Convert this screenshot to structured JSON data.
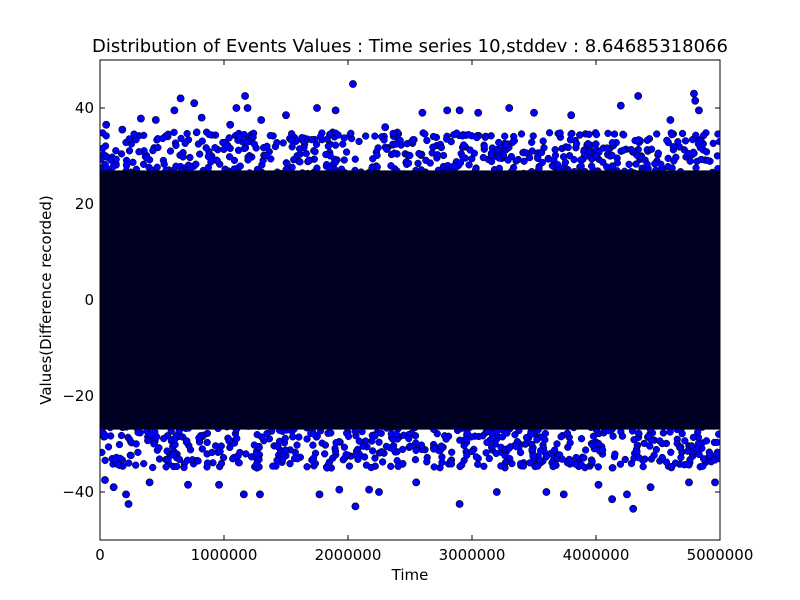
{
  "chart_data": {
    "type": "scatter",
    "title": "Distribution of Events Values : Time series 10,stddev : 8.64685318066",
    "xlabel": "Time",
    "ylabel": "Values(Difference recorded)",
    "xlim": [
      0,
      5000000
    ],
    "ylim": [
      -50,
      50
    ],
    "x_ticks": [
      0,
      1000000,
      2000000,
      3000000,
      4000000,
      5000000
    ],
    "x_tick_labels": [
      "0",
      "1000000",
      "2000000",
      "3000000",
      "4000000",
      "5000000"
    ],
    "y_ticks": [
      -40,
      -20,
      0,
      20,
      40
    ],
    "y_tick_labels": [
      "−40",
      "−20",
      "0",
      "20",
      "40"
    ],
    "grid": false,
    "legend": "none",
    "marker_color": "#0000ff",
    "marker_edge_color": "#000000",
    "dense_band_color": "#000022",
    "series": [
      {
        "dense_core_range": [
          -27,
          27
        ],
        "upper_outliers": [
          {
            "x": 50000,
            "y": 36.5
          },
          {
            "x": 180000,
            "y": 35.5
          },
          {
            "x": 330000,
            "y": 37.8
          },
          {
            "x": 450000,
            "y": 37.5
          },
          {
            "x": 600000,
            "y": 39.5
          },
          {
            "x": 650000,
            "y": 42.0
          },
          {
            "x": 760000,
            "y": 41.0
          },
          {
            "x": 820000,
            "y": 38.0
          },
          {
            "x": 1050000,
            "y": 36.5
          },
          {
            "x": 1100000,
            "y": 40.0
          },
          {
            "x": 1170000,
            "y": 42.5
          },
          {
            "x": 1190000,
            "y": 40.0
          },
          {
            "x": 1300000,
            "y": 37.5
          },
          {
            "x": 1500000,
            "y": 38.5
          },
          {
            "x": 1750000,
            "y": 40.0
          },
          {
            "x": 1900000,
            "y": 39.5
          },
          {
            "x": 2040000,
            "y": 45.0
          },
          {
            "x": 2300000,
            "y": 36.0
          },
          {
            "x": 2600000,
            "y": 39.0
          },
          {
            "x": 2800000,
            "y": 39.5
          },
          {
            "x": 2900000,
            "y": 39.5
          },
          {
            "x": 3050000,
            "y": 39.0
          },
          {
            "x": 3300000,
            "y": 40.0
          },
          {
            "x": 3500000,
            "y": 39.0
          },
          {
            "x": 3800000,
            "y": 38.5
          },
          {
            "x": 4200000,
            "y": 40.5
          },
          {
            "x": 4340000,
            "y": 42.5
          },
          {
            "x": 4600000,
            "y": 37.5
          },
          {
            "x": 4790000,
            "y": 43.0
          },
          {
            "x": 4800000,
            "y": 41.5
          },
          {
            "x": 4830000,
            "y": 39.5
          }
        ],
        "lower_outliers": [
          {
            "x": 40000,
            "y": -37.5
          },
          {
            "x": 110000,
            "y": -39.0
          },
          {
            "x": 210000,
            "y": -40.5
          },
          {
            "x": 230000,
            "y": -42.5
          },
          {
            "x": 400000,
            "y": -38.0
          },
          {
            "x": 710000,
            "y": -38.5
          },
          {
            "x": 960000,
            "y": -38.5
          },
          {
            "x": 1160000,
            "y": -40.5
          },
          {
            "x": 1290000,
            "y": -40.5
          },
          {
            "x": 1770000,
            "y": -40.5
          },
          {
            "x": 1930000,
            "y": -39.5
          },
          {
            "x": 2060000,
            "y": -43.0
          },
          {
            "x": 2170000,
            "y": -39.5
          },
          {
            "x": 2250000,
            "y": -40.0
          },
          {
            "x": 2550000,
            "y": -38.0
          },
          {
            "x": 2900000,
            "y": -42.5
          },
          {
            "x": 3200000,
            "y": -40.0
          },
          {
            "x": 3600000,
            "y": -40.0
          },
          {
            "x": 3740000,
            "y": -40.5
          },
          {
            "x": 4020000,
            "y": -38.5
          },
          {
            "x": 4130000,
            "y": -41.5
          },
          {
            "x": 4250000,
            "y": -40.5
          },
          {
            "x": 4300000,
            "y": -43.5
          },
          {
            "x": 4440000,
            "y": -39.0
          },
          {
            "x": 4750000,
            "y": -38.0
          },
          {
            "x": 4960000,
            "y": -38.0
          }
        ]
      }
    ]
  }
}
